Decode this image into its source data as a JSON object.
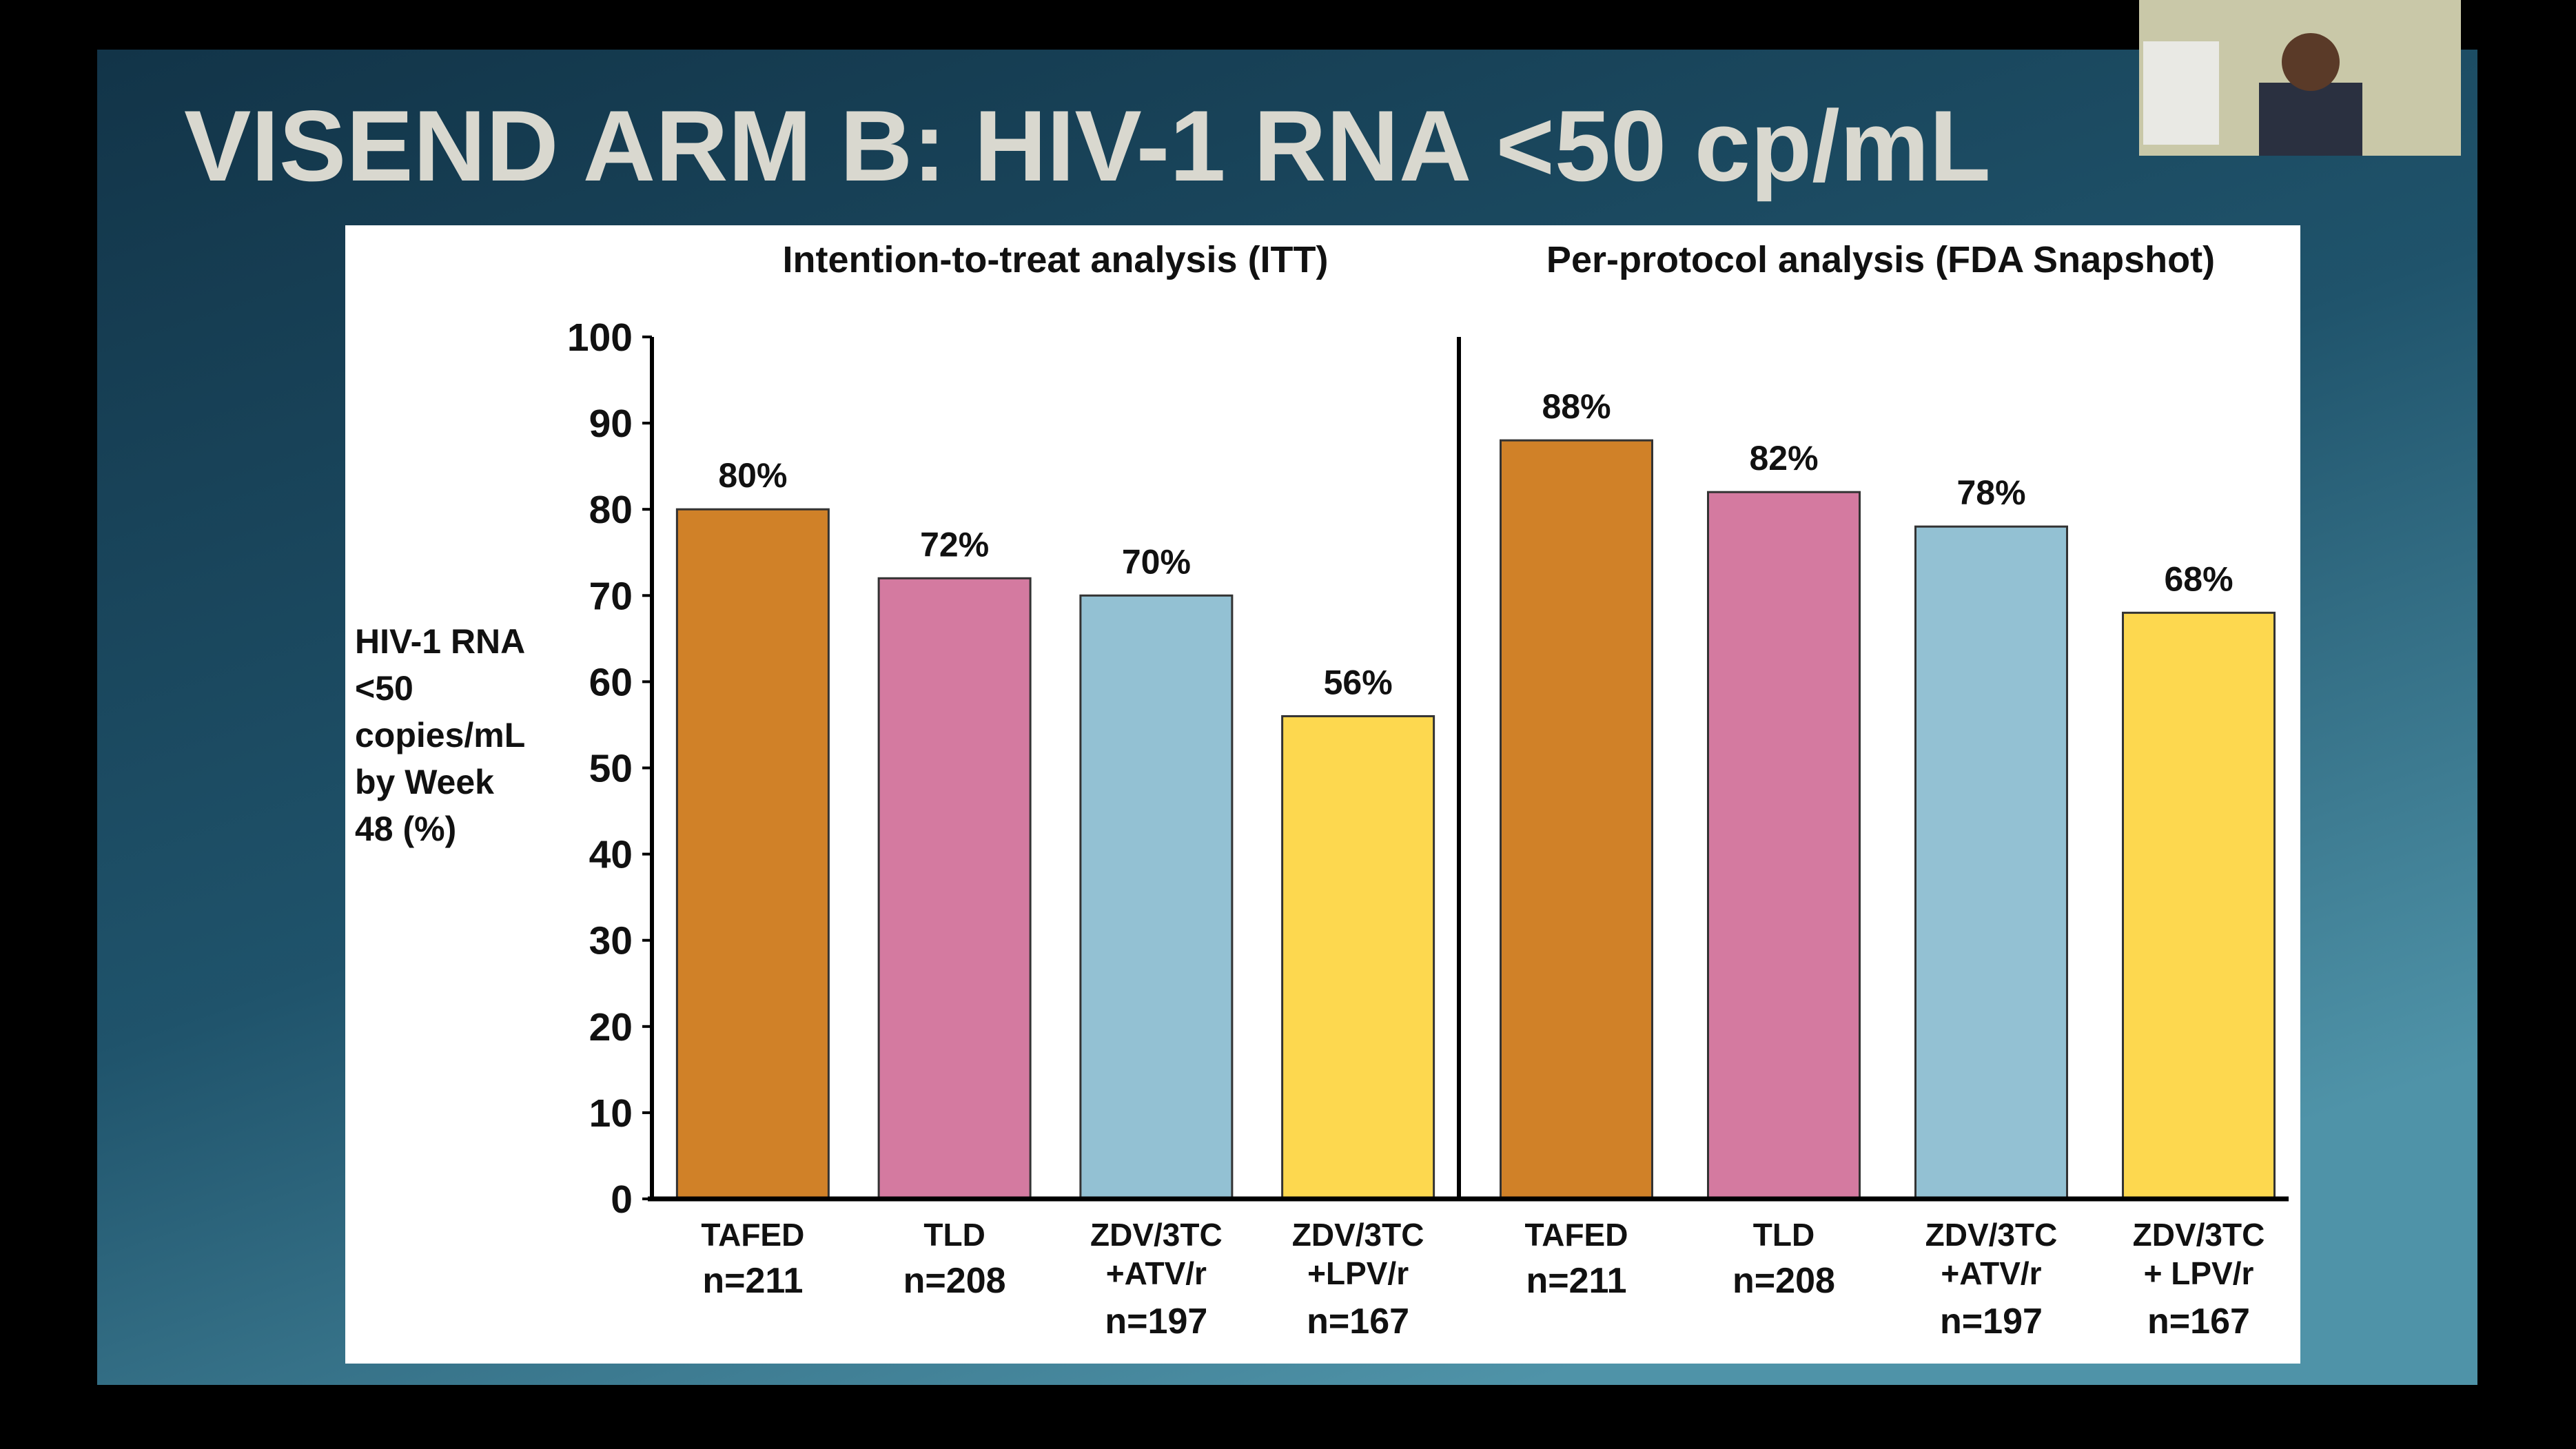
{
  "slide_title": "VISEND ARM B: HIV-1 RNA <50 cp/mL",
  "chart_data": [
    {
      "type": "bar",
      "title": "Intention-to-treat analysis (ITT)",
      "ylabel": [
        "HIV-1 RNA",
        "<50",
        "copies/mL",
        "by Week",
        "48 (%)"
      ],
      "categories": [
        [
          "TAFED",
          "n=211"
        ],
        [
          "TLD",
          "n=208"
        ],
        [
          "ZDV/3TC",
          "+ATV/r",
          "n=197"
        ],
        [
          "ZDV/3TC",
          "+LPV/r",
          "n=167"
        ]
      ],
      "values": [
        80,
        72,
        70,
        56
      ],
      "value_labels": [
        "80%",
        "72%",
        "70%",
        "56%"
      ],
      "colors": [
        "#d08128",
        "#d47aa0",
        "#93c1d3",
        "#fdd84f"
      ],
      "ylim": [
        0,
        100
      ],
      "yticks": [
        0,
        10,
        20,
        30,
        40,
        50,
        60,
        70,
        80,
        90,
        100
      ],
      "grid": false
    },
    {
      "type": "bar",
      "title": "Per-protocol analysis (FDA Snapshot)",
      "categories": [
        [
          "TAFED",
          "n=211"
        ],
        [
          "TLD",
          "n=208"
        ],
        [
          "ZDV/3TC",
          "+ATV/r",
          "n=197"
        ],
        [
          "ZDV/3TC",
          "+ LPV/r",
          "n=167"
        ]
      ],
      "values": [
        88,
        82,
        78,
        68
      ],
      "value_labels": [
        "88%",
        "82%",
        "78%",
        "68%"
      ],
      "colors": [
        "#d08128",
        "#d47aa0",
        "#93c1d3",
        "#fdd84f"
      ],
      "ylim": [
        0,
        100
      ],
      "grid": false
    }
  ]
}
